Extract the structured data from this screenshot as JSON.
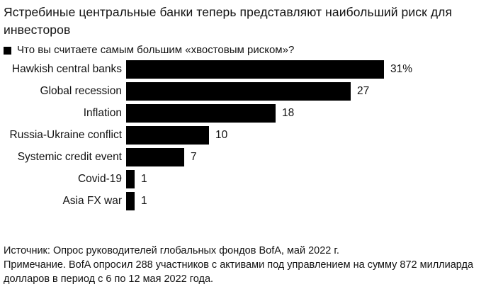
{
  "title": "Ястребиные центральные банки теперь представляют наибольший риск для инвесторов",
  "legend": {
    "label": "Что вы считаете самым большим «хвостовым риском»?"
  },
  "chart_data": {
    "type": "bar",
    "orientation": "horizontal",
    "title": "Что вы считаете самым большим «хвостовым риском»?",
    "categories": [
      "Hawkish central banks",
      "Global recession",
      "Inflation",
      "Russia-Ukraine conflict",
      "Systemic credit event",
      "Covid-19",
      "Asia FX war"
    ],
    "values": [
      31,
      27,
      18,
      10,
      7,
      1,
      1
    ],
    "value_labels": [
      "31%",
      "27",
      "18",
      "10",
      "7",
      "1",
      "1"
    ],
    "unit": "%",
    "xlim": [
      0,
      31
    ],
    "grid": false,
    "axis_labels_shown": false,
    "legend_position": "top-left",
    "bar_color": "#000000"
  },
  "footer": {
    "source": "Источник: Опрос руководителей глобальных фондов BofA, май 2022 г.",
    "note": "Примечание. BofA опросил 288 участников с активами под управлением на сумму 872 миллиарда долларов в период с 6 по 12 мая 2022 года."
  },
  "colors": {
    "bar": "#000000",
    "text": "#121212",
    "background": "#ffffff"
  }
}
